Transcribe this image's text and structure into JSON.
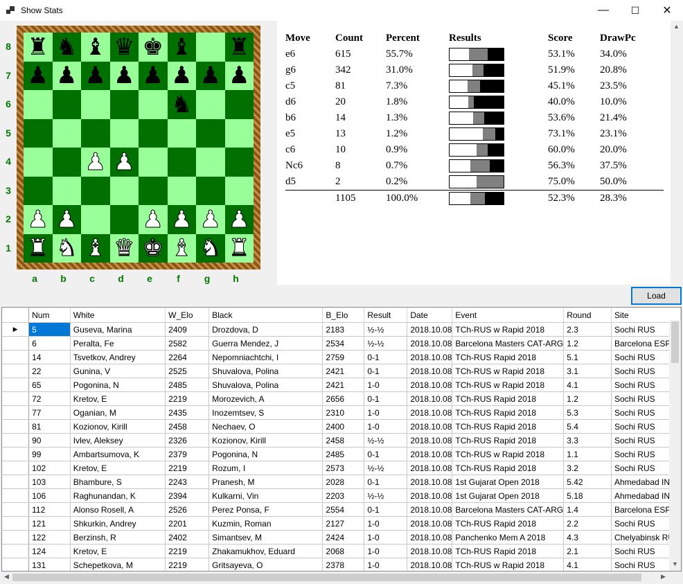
{
  "window": {
    "title": "Show Stats",
    "minimize": "—",
    "maximize": "☐",
    "close": "✕"
  },
  "board": {
    "ranks": [
      "8",
      "7",
      "6",
      "5",
      "4",
      "3",
      "2",
      "1"
    ],
    "files": [
      "a",
      "b",
      "c",
      "d",
      "e",
      "f",
      "g",
      "h"
    ],
    "position": [
      [
        "r",
        "n",
        "b",
        "q",
        "k",
        "b",
        "",
        "r"
      ],
      [
        "p",
        "p",
        "p",
        "p",
        "p",
        "p",
        "p",
        "p"
      ],
      [
        "",
        "",
        "",
        "",
        "",
        "n",
        "",
        ""
      ],
      [
        "",
        "",
        "",
        "",
        "",
        "",
        "",
        ""
      ],
      [
        "",
        "",
        "P",
        "P",
        "",
        "",
        "",
        ""
      ],
      [
        "",
        "",
        "",
        "",
        "",
        "",
        "",
        ""
      ],
      [
        "P",
        "P",
        "",
        "",
        "P",
        "P",
        "P",
        "P"
      ],
      [
        "R",
        "N",
        "B",
        "Q",
        "K",
        "B",
        "N",
        "R"
      ]
    ],
    "light_color": "#99ff99",
    "dark_color": "#007000"
  },
  "stats": {
    "headers": {
      "move": "Move",
      "count": "Count",
      "percent": "Percent",
      "results": "Results",
      "score": "Score",
      "drawpc": "DrawPc"
    },
    "rows": [
      {
        "move": "e6",
        "count": "615",
        "percent": "55.7%",
        "score": "53.1%",
        "drawpc": "34.0%",
        "bar": [
          36,
          34,
          30
        ]
      },
      {
        "move": "g6",
        "count": "342",
        "percent": "31.0%",
        "score": "51.9%",
        "drawpc": "20.8%",
        "bar": [
          42,
          21,
          37
        ]
      },
      {
        "move": "c5",
        "count": "81",
        "percent": "7.3%",
        "score": "45.1%",
        "drawpc": "23.5%",
        "bar": [
          33,
          24,
          43
        ]
      },
      {
        "move": "d6",
        "count": "20",
        "percent": "1.8%",
        "score": "40.0%",
        "drawpc": "10.0%",
        "bar": [
          35,
          10,
          55
        ]
      },
      {
        "move": "b6",
        "count": "14",
        "percent": "1.3%",
        "score": "53.6%",
        "drawpc": "21.4%",
        "bar": [
          43,
          21,
          36
        ]
      },
      {
        "move": "e5",
        "count": "13",
        "percent": "1.2%",
        "score": "73.1%",
        "drawpc": "23.1%",
        "bar": [
          62,
          23,
          15
        ]
      },
      {
        "move": "c6",
        "count": "10",
        "percent": "0.9%",
        "score": "60.0%",
        "drawpc": "20.0%",
        "bar": [
          50,
          20,
          30
        ]
      },
      {
        "move": "Nc6",
        "count": "8",
        "percent": "0.7%",
        "score": "56.3%",
        "drawpc": "37.5%",
        "bar": [
          38,
          37,
          25
        ]
      },
      {
        "move": "d5",
        "count": "2",
        "percent": "0.2%",
        "score": "75.0%",
        "drawpc": "50.0%",
        "bar": [
          50,
          50,
          0
        ]
      }
    ],
    "total": {
      "move": "",
      "count": "1105",
      "percent": "100.0%",
      "score": "52.3%",
      "drawpc": "28.3%",
      "bar": [
        38,
        28,
        34
      ]
    },
    "bar_colors": {
      "win": "#ffffff",
      "draw": "#808080",
      "loss": "#000000"
    }
  },
  "load_button": "Load",
  "games": {
    "columns": [
      "Num",
      "White",
      "W_Elo",
      "Black",
      "B_Elo",
      "Result",
      "Date",
      "Event",
      "Round",
      "Site"
    ],
    "rows": [
      [
        "5",
        "Guseva, Marina",
        "2409",
        "Drozdova, D",
        "2183",
        "½-½",
        "2018.10.08",
        "TCh-RUS w Rapid 2018",
        "2.3",
        "Sochi RUS"
      ],
      [
        "6",
        "Peralta, Fe",
        "2582",
        "Guerra Mendez, J",
        "2534",
        "½-½",
        "2018.10.08",
        "Barcelona Masters CAT-ARG",
        "1.2",
        "Barcelona ESP"
      ],
      [
        "14",
        "Tsvetkov, Andrey",
        "2264",
        "Nepomniachtchi, I",
        "2759",
        "0-1",
        "2018.10.08",
        "TCh-RUS Rapid 2018",
        "5.1",
        "Sochi RUS"
      ],
      [
        "22",
        "Gunina, V",
        "2525",
        "Shuvalova, Polina",
        "2421",
        "0-1",
        "2018.10.08",
        "TCh-RUS w Rapid 2018",
        "3.1",
        "Sochi RUS"
      ],
      [
        "65",
        "Pogonina, N",
        "2485",
        "Shuvalova, Polina",
        "2421",
        "1-0",
        "2018.10.08",
        "TCh-RUS w Rapid 2018",
        "4.1",
        "Sochi RUS"
      ],
      [
        "72",
        "Kretov, E",
        "2219",
        "Morozevich, A",
        "2656",
        "0-1",
        "2018.10.08",
        "TCh-RUS Rapid 2018",
        "1.2",
        "Sochi RUS"
      ],
      [
        "77",
        "Oganian, M",
        "2435",
        "Inozemtsev, S",
        "2310",
        "1-0",
        "2018.10.08",
        "TCh-RUS Rapid 2018",
        "5.3",
        "Sochi RUS"
      ],
      [
        "81",
        "Kozionov, Kirill",
        "2458",
        "Nechaev, O",
        "2400",
        "1-0",
        "2018.10.08",
        "TCh-RUS Rapid 2018",
        "5.4",
        "Sochi RUS"
      ],
      [
        "90",
        "Ivlev, Aleksey",
        "2326",
        "Kozionov, Kirill",
        "2458",
        "½-½",
        "2018.10.08",
        "TCh-RUS Rapid 2018",
        "3.3",
        "Sochi RUS"
      ],
      [
        "99",
        "Ambartsumova, K",
        "2379",
        "Pogonina, N",
        "2485",
        "0-1",
        "2018.10.08",
        "TCh-RUS w Rapid 2018",
        "1.1",
        "Sochi RUS"
      ],
      [
        "102",
        "Kretov, E",
        "2219",
        "Rozum, I",
        "2573",
        "½-½",
        "2018.10.08",
        "TCh-RUS Rapid 2018",
        "3.2",
        "Sochi RUS"
      ],
      [
        "103",
        "Bhambure, S",
        "2243",
        "Pranesh, M",
        "2028",
        "0-1",
        "2018.10.08",
        "1st Gujarat Open 2018",
        "5.42",
        "Ahmedabad IND"
      ],
      [
        "106",
        "Raghunandan, K",
        "2394",
        "Kulkarni, Vin",
        "2203",
        "½-½",
        "2018.10.08",
        "1st Gujarat Open 2018",
        "5.18",
        "Ahmedabad IND"
      ],
      [
        "112",
        "Alonso Rosell, A",
        "2526",
        "Perez Ponsa, F",
        "2554",
        "0-1",
        "2018.10.08",
        "Barcelona Masters CAT-ARG",
        "1.4",
        "Barcelona ESP"
      ],
      [
        "121",
        "Shkurkin, Andrey",
        "2201",
        "Kuzmin, Roman",
        "2127",
        "1-0",
        "2018.10.08",
        "TCh-RUS Rapid 2018",
        "2.2",
        "Sochi RUS"
      ],
      [
        "122",
        "Berzinsh, R",
        "2402",
        "Simantsev, M",
        "2424",
        "1-0",
        "2018.10.08",
        "Panchenko Mem A 2018",
        "4.3",
        "Chelyabinsk RUS"
      ],
      [
        "124",
        "Kretov, E",
        "2219",
        "Zhakamukhov, Eduard",
        "2068",
        "1-0",
        "2018.10.08",
        "TCh-RUS Rapid 2018",
        "2.1",
        "Sochi RUS"
      ],
      [
        "131",
        "Schepetkova, M",
        "2219",
        "Gritsayeva, O",
        "2378",
        "1-0",
        "2018.10.08",
        "TCh-RUS w Rapid 2018",
        "4.1",
        "Sochi RUS"
      ]
    ],
    "current_row_marker": "▶"
  },
  "scroll_arrows": {
    "up": "▲",
    "down": "▼",
    "left": "◀",
    "right": "▶"
  }
}
